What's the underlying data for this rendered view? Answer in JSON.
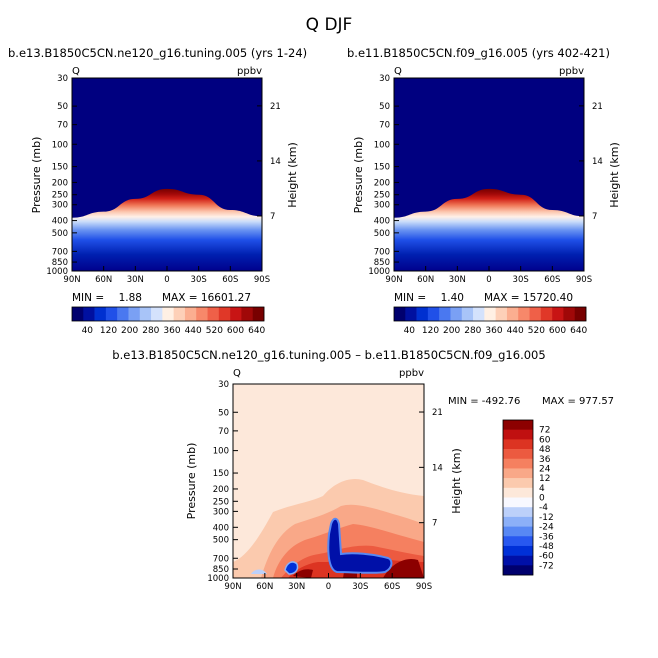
{
  "page_title": "Q DJF",
  "colors": {
    "abs_scale": [
      "#00006e",
      "#0010a0",
      "#0030d0",
      "#2050e8",
      "#4a78f0",
      "#7aa0f4",
      "#a8c4f8",
      "#d4e2fc",
      "#fff0e4",
      "#fdd0b8",
      "#fbae90",
      "#f7886a",
      "#ef6048",
      "#e03828",
      "#c81414",
      "#a00808",
      "#780000"
    ],
    "diff_scale": [
      "#00006e",
      "#0010a8",
      "#0030d8",
      "#2858f0",
      "#5888f4",
      "#8cb0f8",
      "#bcd0fa",
      "#f8f8ff",
      "#fde8da",
      "#fbcaae",
      "#f9a888",
      "#f58060",
      "#ec5a40",
      "#dc3422",
      "#c01010",
      "#8c0000"
    ]
  },
  "chart_data": [
    {
      "type": "contour",
      "title": "b.e13.B1850C5CN.ne120_g16.tuning.005 (yrs 1-24)",
      "left_label": "Q",
      "right_label": "ppbv",
      "ylabel": "Pressure (mb)",
      "ylabel_right": "Height (km)",
      "x_ticks": [
        "90N",
        "60N",
        "30N",
        "0",
        "30S",
        "60S",
        "90S"
      ],
      "y_ticks": [
        "30",
        "50",
        "70",
        "100",
        "150",
        "200",
        "250",
        "300",
        "400",
        "500",
        "700",
        "850",
        "1000"
      ],
      "y_right_ticks": [
        "21",
        "14",
        "7"
      ],
      "min_label": "MIN =",
      "min_value": "1.88",
      "max_label": "MAX = 16601.27",
      "levels": [
        "40",
        "120",
        "200",
        "280",
        "360",
        "440",
        "520",
        "600",
        "640"
      ],
      "ylim": [
        1000,
        30
      ],
      "tropopause_pressure_mb": [
        [
          90,
          380
        ],
        [
          60,
          340
        ],
        [
          30,
          270
        ],
        [
          0,
          225
        ],
        [
          -30,
          250
        ],
        [
          -60,
          330
        ],
        [
          -90,
          370
        ]
      ]
    },
    {
      "type": "contour",
      "title": "b.e11.B1850C5CN.f09_g16.005 (yrs 402-421)",
      "left_label": "Q",
      "right_label": "ppbv",
      "ylabel": "Pressure (mb)",
      "ylabel_right": "Height (km)",
      "x_ticks": [
        "90N",
        "60N",
        "30N",
        "0",
        "30S",
        "60S",
        "90S"
      ],
      "y_ticks": [
        "30",
        "50",
        "70",
        "100",
        "150",
        "200",
        "250",
        "300",
        "400",
        "500",
        "700",
        "850",
        "1000"
      ],
      "y_right_ticks": [
        "21",
        "14",
        "7"
      ],
      "min_label": "MIN =",
      "min_value": "1.40",
      "max_label": "MAX = 15720.40",
      "levels": [
        "40",
        "120",
        "200",
        "280",
        "360",
        "440",
        "520",
        "600",
        "640"
      ],
      "ylim": [
        1000,
        30
      ],
      "tropopause_pressure_mb": [
        [
          90,
          380
        ],
        [
          60,
          340
        ],
        [
          30,
          270
        ],
        [
          0,
          225
        ],
        [
          -30,
          250
        ],
        [
          -60,
          330
        ],
        [
          -90,
          370
        ]
      ]
    },
    {
      "type": "contour",
      "title": "b.e13.B1850C5CN.ne120_g16.tuning.005 – b.e11.B1850C5CN.f09_g16.005",
      "left_label": "Q",
      "right_label": "ppbv",
      "ylabel": "Pressure (mb)",
      "ylabel_right": "Height (km)",
      "x_ticks": [
        "90N",
        "60N",
        "30N",
        "0",
        "30S",
        "60S",
        "90S"
      ],
      "y_ticks": [
        "30",
        "50",
        "70",
        "100",
        "150",
        "200",
        "250",
        "300",
        "400",
        "500",
        "700",
        "850",
        "1000"
      ],
      "y_right_ticks": [
        "21",
        "14",
        "7"
      ],
      "min_label": "MIN = -492.76",
      "max_label": "MAX = 977.57",
      "levels": [
        "72",
        "60",
        "48",
        "36",
        "24",
        "12",
        "4",
        "0",
        "-4",
        "-12",
        "-24",
        "-36",
        "-48",
        "-60",
        "-72"
      ],
      "ylim": [
        1000,
        30
      ]
    }
  ]
}
